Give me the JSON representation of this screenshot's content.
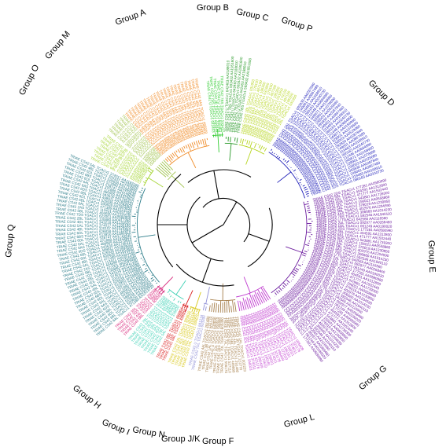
{
  "figure": {
    "groups": [
      {
        "id": "A",
        "label": "Group A",
        "color": "#f08a24",
        "sample_leaves": [
          "TRIAE CS42 4AL TGACv1 289510",
          "TRIAE CS42 6BS TGACv1 513950",
          "TRIAE CS42 5AS TGACv1 394049",
          "TRIAE CS42 5DL TGACv1 432840",
          "TRIAE CS42 4BS TGACv1 328310",
          "TRIAE CS42 6AS TGACv1 485939",
          "TRIAE CS42 7AS TGACv1 569839",
          "TRIAE CS42 2BL TGACv1 130450"
        ]
      },
      {
        "id": "B",
        "label": "Group B",
        "color": "#33cc33",
        "sample_leaves": [
          "TRIAE CS42 U TGACv1 642463",
          "TRIAE CS42 7BS TGACv1 593432",
          "TRIAE CS42 3B TGACv1 223910"
        ]
      },
      {
        "id": "C",
        "label": "Group C",
        "color": "#2a9a2a",
        "sample_leaves": [
          "TRIAE CS42 U TGACv1 642463 AA2188010",
          "TRIAE CS42 7BS TGACv1 593432 AA1951600"
        ]
      },
      {
        "id": "P",
        "label": "Group P",
        "color": "#b5d41c",
        "sample_leaves": [
          "TRIAE CS42 1BL TGACv1 031950",
          "TRIAE CS42 2DS TGACv1 179100",
          "TRIAE CS42 6AS TGACv1 487100",
          "TRIAE CS42 3AL TGACv1 195300"
        ]
      },
      {
        "id": "D",
        "label": "Group D",
        "color": "#1f1fb8",
        "sample_leaves": [
          "TRIAE CS42 2AL TGACv1 093930 AA0287840",
          "TRIAE CS42 3DL TGACv1 249001 AA0867480",
          "TRIAE CS42 1AS TGACv1 019483 AA0168910",
          "TRIAE CS42 1DS TGACv1 080183 AA0240730",
          "TRIAE CS42 3AS TGACv1 211446 AA0684890",
          "TRIAE CS42 1BS TGACv1 049871 AA0159960",
          "TRIAE CS42 4BS TGACv1 328901 AA1078690",
          "TRIAE CS42 2DL TGACv1 158003 AA0529080"
        ]
      },
      {
        "id": "E",
        "label": "Group E",
        "color": "#6b1a9e",
        "sample_leaves": [
          "TRIAE CS42 2DS TGACv1 177281 AA0580990",
          "TRIAE CS42 5BL TGACv1 404591 AA1312800",
          "TRIAE CS42 6AL TGACv1 471777 AA1502440",
          "TRIAE CS42 6DS TGACv1 543881 AA1739300",
          "TRIAE CS42 2DL TGACv1 156021 AA0558860",
          "TRIAE CS42 5AL TGACv1 376019 AA1230850",
          "TRIAE CS42 5BL TGACv1 402976 AA1204590",
          "TRIAE CS42 4AS TGACv1 306660 AA1014230",
          "TRIAE CS42 7BS TGACv1 592546 AA1940110",
          "TRIAE CS42 U TGACv1 642565 AA2116560",
          "TRIAE CS42 2AL TGACv1 092977 AA0268460",
          "TRIAE CS42 1DL TGACv1 061249 AA0190020"
        ]
      },
      {
        "id": "G",
        "label": "Group G",
        "color": "#c03ccf",
        "sample_leaves": [
          "TRIAE CS42 2AL TGACv1 095409",
          "TRIAE CS42 4BL TGACv1 321178",
          "TRIAE CS42 5AL TGACv1 374011",
          "TRIAE CS42 2DL TGACv1 158021",
          "TRIAE CS42 3AL TGACv1 195181",
          "TRIAE CS42 3DS TGACv1 272610"
        ]
      },
      {
        "id": "L",
        "label": "Group L",
        "color": "#a57e4a",
        "sample_leaves": [
          "TRIAE CS42 1AL TGACv1 002220",
          "TRIAE CS42 3B TGACv1 222770",
          "TRIAE CS42 4AL TGACv1 291480",
          "TRIAE CS42 5BL TGACv1 409880",
          "TRIAE CS42 6DL TGACv1 527110",
          "TRIAE CS42 7AL TGACv1 556170",
          "TRIAE CS42 7DL TGACv1 603490",
          "TRIAE CS42 2BS TGACv1 146980",
          "TRIAE CS42 1DL TGACv1 060610",
          "TRIAE CS42 U TGACv1 640690"
        ]
      },
      {
        "id": "F",
        "label": "Group F",
        "color": "#8f8fd6",
        "sample_leaves": [
          "TRIAE CS42 7DL TGACv1 603390",
          "TRIAE CS42 U TGACv1 641218"
        ]
      },
      {
        "id": "JK",
        "label": "Group J/K",
        "color": "#d8c81a",
        "sample_leaves": [
          "TRIAE CS42 2AL TGACv1 094610",
          "TRIAE CS42 5DL TGACv1 433901",
          "TRIAE CS42 6BL TGACv1 501810",
          "TRIAE CS42 4DL TGACv1 342777"
        ]
      },
      {
        "id": "N",
        "label": "Group N",
        "color": "#d81b1b",
        "sample_leaves": [
          "TRIAE CS42 6BL TGACv1 499904",
          "TRIAE CS42 2DL TGACv1 158401"
        ]
      },
      {
        "id": "I",
        "label": "Group I",
        "color": "#3fd1b5",
        "sample_leaves": [
          "TRIAE CS42 5AL TGACv1 376620",
          "TRIAE CS42 7BL TGACv1 577010",
          "TRIAE CS42 4DS TGACv1 362010",
          "TRIAE CS42 3AL TGACv1 195110",
          "TRIAE CS42 1BL TGACv1 031270",
          "TRIAE CS42 2DS TGACv1 179930"
        ]
      },
      {
        "id": "H",
        "label": "Group H",
        "color": "#d6257a",
        "sample_leaves": [
          "TRIAE CS42 5BL TGACv1 405020",
          "TRIAE CS42 4AL TGACv1 288210",
          "TRIAE CS42 7DS TGACv1 622770",
          "TRIAE CS42 3DL TGACv1 250390"
        ]
      },
      {
        "id": "Q",
        "label": "Group Q",
        "color": "#2d7d8a",
        "sample_leaves": [
          "TRIAE CS42 6AL TGACv1 471389 AA1513720",
          "TRIAE CS42 6BL TGACv1 500828 AA1604850",
          "TRIAE CS42 6DL TGACv1 526935 AA1694500",
          "TRIAE CS42 6BL TGACv1 499911 AA1605010",
          "TRIAE CS42 6DS TGACv1 543630 AA1746310",
          "TRIAE CS42 6AS TGACv1 486905 AA1579610",
          "TRIAE CS42 6AL TGACv1 471880 AA1529620",
          "TRIAE CS42 6DL TGACv1 528747 AA1715430",
          "TRIAE CS42 6BS TGACv1 513950 AA1664910",
          "TRIAE CS42 6DL TGACv1 526838 AA1710840",
          "TRIAE CS42 4BL TGACv1 320107 AA1026920",
          "TRIAE CS42 5AL TGACv1 374017 AA1193180",
          "TRIAE CS42 4DL TGACv1 343218 AA1131620",
          "TRIAE CS42 2BL TGACv1 130880 AA0417260",
          "TRIAE CS42 7DS TGACv1 622001 AA2084950",
          "TRIAE CS42 5BL TGACv1 404690 AA1316530",
          "TRIAE CS42 2AS TGACv1 113421 AA0357780"
        ]
      },
      {
        "id": "O",
        "label": "Group O",
        "color": "#a8d63a",
        "sample_leaves": [
          "TRIAE CS42 6BL TGACv1 502020",
          "TRIAE CS42 3B TGACv1 220910",
          "TRIAE CS42 3AS TGACv1 210980"
        ]
      },
      {
        "id": "M",
        "label": "Group M",
        "color": "#9fc24b",
        "sample_leaves": [
          "TRIAE CS42 2BS TGACv1 146120",
          "TRIAE CS42 6DL TGACv1 526019",
          "TRIAE CS42 1DL TGACv1 061200"
        ]
      }
    ],
    "extra_labels": [
      "TRIAE CS42 5BL TGACv1 404591 AA1312800",
      "TRIAE CS42 7DL TGACv1 604281 AA2026410"
    ]
  }
}
